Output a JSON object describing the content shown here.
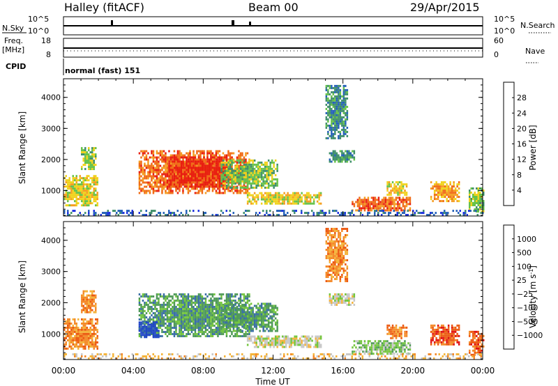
{
  "header": {
    "station": "Halley (fitACF)",
    "beam": "Beam 00",
    "date": "29/Apr/2015"
  },
  "top_panels": {
    "nsky_label": "N.Sky",
    "nsky_ticks": [
      "10^5",
      "10^0"
    ],
    "nsearch_label": "N.Search",
    "nsearch_ticks": [
      "10^5",
      "10^0"
    ],
    "freq_label": "Freq.",
    "freq_unit": "[MHz]",
    "freq_ticks": [
      "18",
      "8"
    ],
    "nave_label": "Nave",
    "nave_ticks": [
      "60",
      "0"
    ],
    "cpid_label": "CPID",
    "cpid_text": "normal (fast) 151"
  },
  "chart_data": [
    {
      "type": "heatmap",
      "panel": "power",
      "ylabel": "Slant Range [km]",
      "yticks": [
        1000,
        2000,
        3000,
        4000
      ],
      "ylim": [
        180,
        4600
      ],
      "xlim_hours": [
        0,
        24
      ],
      "colorbar": {
        "label": "Power [dB]",
        "tick_labels": [
          "4",
          "8",
          "12",
          "16",
          "20",
          "24",
          "28"
        ],
        "colors": [
          "#1c2fe0",
          "#2360b8",
          "#3f8f6a",
          "#66c24a",
          "#f0d21c",
          "#f59d20",
          "#f06b16",
          "#e81d0f"
        ]
      },
      "regions": [
        {
          "t0": 0.0,
          "t1": 1.9,
          "r0": 500,
          "r1": 1500,
          "level": 4
        },
        {
          "t0": 1.0,
          "t1": 1.8,
          "r0": 1700,
          "r1": 2400,
          "level": 3
        },
        {
          "t0": 4.3,
          "t1": 10.6,
          "r0": 900,
          "r1": 2300,
          "level": 6
        },
        {
          "t0": 6.0,
          "t1": 9.6,
          "r0": 1100,
          "r1": 2100,
          "level": 7
        },
        {
          "t0": 9.0,
          "t1": 12.2,
          "r0": 1100,
          "r1": 2000,
          "level": 3
        },
        {
          "t0": 10.5,
          "t1": 14.7,
          "r0": 600,
          "r1": 950,
          "level": 4
        },
        {
          "t0": 16.5,
          "t1": 19.8,
          "r0": 350,
          "r1": 800,
          "level": 6
        },
        {
          "t0": 18.5,
          "t1": 19.6,
          "r0": 850,
          "r1": 1300,
          "level": 4
        },
        {
          "t0": 21.0,
          "t1": 22.6,
          "r0": 650,
          "r1": 1300,
          "level": 5
        },
        {
          "t0": 23.2,
          "t1": 24.0,
          "r0": 350,
          "r1": 1100,
          "level": 3
        },
        {
          "t0": 15.0,
          "t1": 16.2,
          "r0": 2700,
          "r1": 4400,
          "level": 2
        },
        {
          "t0": 15.2,
          "t1": 16.6,
          "r0": 1900,
          "r1": 2300,
          "level": 2
        },
        {
          "t0": 0.0,
          "t1": 24.0,
          "r0": 200,
          "r1": 380,
          "level": 1
        }
      ]
    },
    {
      "type": "heatmap",
      "panel": "velocity",
      "ylabel": "Slant Range [km]",
      "yticks": [
        1000,
        2000,
        3000,
        4000
      ],
      "ylim": [
        180,
        4600
      ],
      "xlim_hours": [
        0,
        24
      ],
      "xticks": [
        "00:00",
        "04:00",
        "08:00",
        "12:00",
        "16:00",
        "20:00",
        "00:00"
      ],
      "xlabel": "Time UT",
      "colorbar": {
        "label": "Velocity [m s",
        "label_exp": "-1",
        "label_end": "]",
        "tick_labels": [
          "1000",
          "500",
          "100",
          "25",
          "−25",
          "−100",
          "−500",
          "−1000"
        ],
        "colors": [
          "#1f44c8",
          "#3a6fa6",
          "#4f9a58",
          "#74c63e",
          "#c8c8c8",
          "#f4b43c",
          "#f48a2a",
          "#ec5a12",
          "#e01010"
        ]
      },
      "regions": [
        {
          "t0": 0.0,
          "t1": 1.9,
          "r0": 500,
          "r1": 1500,
          "level": 6
        },
        {
          "t0": 1.0,
          "t1": 1.8,
          "r0": 1700,
          "r1": 2400,
          "level": 6
        },
        {
          "t0": 4.3,
          "t1": 10.6,
          "r0": 900,
          "r1": 2300,
          "level": 2
        },
        {
          "t0": 4.3,
          "t1": 5.4,
          "r0": 900,
          "r1": 1400,
          "level": 0
        },
        {
          "t0": 9.0,
          "t1": 12.2,
          "r0": 1100,
          "r1": 2000,
          "level": 2
        },
        {
          "t0": 10.5,
          "t1": 14.7,
          "r0": 600,
          "r1": 950,
          "level": 4
        },
        {
          "t0": 16.5,
          "t1": 19.8,
          "r0": 350,
          "r1": 800,
          "level": 3
        },
        {
          "t0": 18.5,
          "t1": 19.6,
          "r0": 850,
          "r1": 1300,
          "level": 6
        },
        {
          "t0": 21.0,
          "t1": 22.6,
          "r0": 650,
          "r1": 1300,
          "level": 7
        },
        {
          "t0": 23.2,
          "t1": 24.0,
          "r0": 350,
          "r1": 1100,
          "level": 7
        },
        {
          "t0": 15.0,
          "t1": 16.2,
          "r0": 2700,
          "r1": 4400,
          "level": 6
        },
        {
          "t0": 15.2,
          "t1": 16.6,
          "r0": 1900,
          "r1": 2300,
          "level": 4
        },
        {
          "t0": 0.0,
          "t1": 24.0,
          "r0": 200,
          "r1": 380,
          "level": 5
        }
      ]
    }
  ]
}
